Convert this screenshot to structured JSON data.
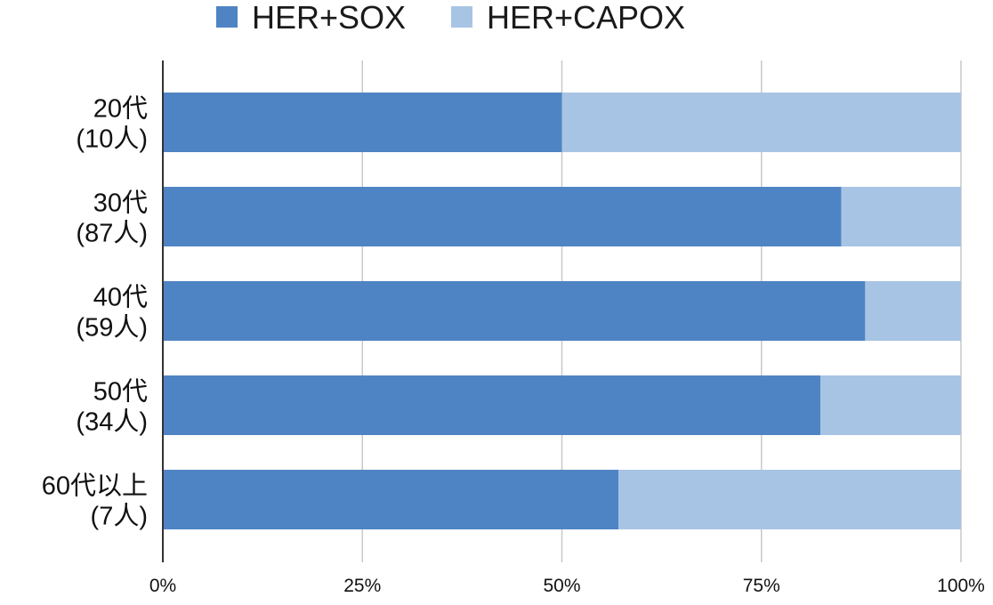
{
  "chart_data": {
    "type": "bar",
    "orientation": "horizontal",
    "stacked": "percent",
    "categories": [
      [
        "20代",
        "(10人)"
      ],
      [
        "30代",
        "(87人)"
      ],
      [
        "40代",
        "(59人)"
      ],
      [
        "50代",
        "(34人)"
      ],
      [
        "60代以上",
        "(7人)"
      ]
    ],
    "series": [
      {
        "name": "HER+SOX",
        "color": "#4f84c4",
        "values": [
          50,
          85,
          88,
          82.4,
          57.1
        ]
      },
      {
        "name": "HER+CAPOX",
        "color": "#a8c4e4",
        "values": [
          50,
          15,
          12,
          17.6,
          42.9
        ]
      }
    ],
    "xlim": [
      0,
      100
    ],
    "xticks": [
      0,
      25,
      50,
      75,
      100
    ],
    "xtick_labels": [
      "0%",
      "25%",
      "50%",
      "75%",
      "100%"
    ],
    "legend_position": "top",
    "grid": true
  }
}
